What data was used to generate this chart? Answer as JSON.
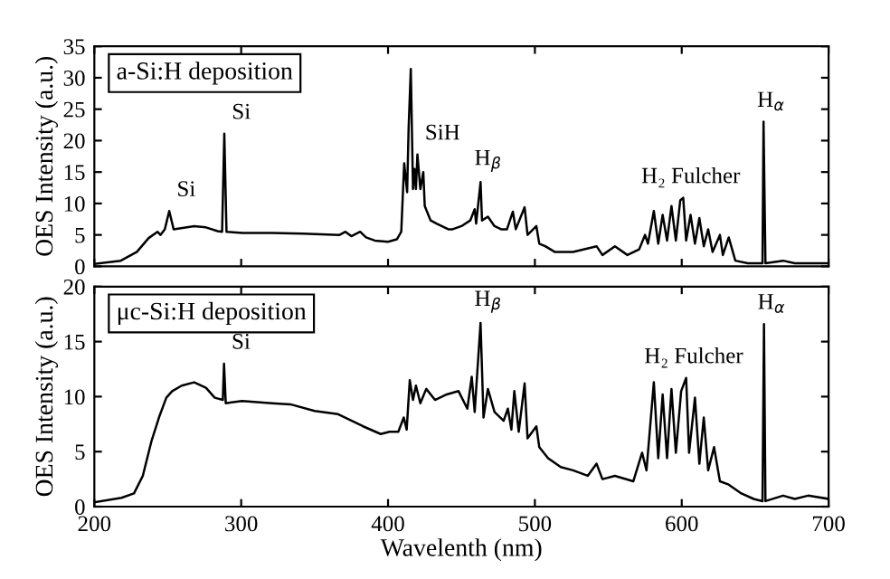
{
  "chart_data": [
    {
      "type": "line",
      "title": "a-Si:H deposition",
      "ylabel": "OES Intensity (a.u.)",
      "xlim": [
        200,
        700
      ],
      "xticks": [
        200,
        300,
        400,
        500,
        600,
        700
      ],
      "ylim": [
        0,
        35
      ],
      "yticks": [
        0,
        5,
        10,
        15,
        20,
        25,
        30,
        35
      ],
      "tick_labels": "y",
      "grid": false,
      "series": [
        {
          "color": "#000000",
          "x": [
            200,
            218,
            229,
            237,
            243,
            245,
            248,
            251,
            254,
            260,
            268,
            276,
            284,
            287,
            288.5,
            290,
            301,
            321,
            342,
            367,
            371,
            375,
            381,
            385,
            391,
            400,
            406,
            409,
            411,
            413,
            414,
            415.5,
            417,
            418,
            419,
            420,
            422,
            424,
            425,
            429,
            433,
            441,
            444,
            450,
            456,
            459,
            460,
            463,
            464,
            468,
            472.5,
            477,
            481,
            485,
            487,
            493,
            495,
            501,
            503,
            507,
            513.5,
            526,
            542,
            546,
            554.5,
            563,
            571,
            575,
            577,
            581,
            584,
            587,
            590,
            593,
            596,
            599,
            601,
            603,
            606,
            609,
            612,
            615,
            618,
            621,
            626,
            628,
            632,
            636.5,
            645,
            655,
            655.7,
            657,
            669,
            677,
            700
          ],
          "values": [
            0.4,
            0.9,
            2.3,
            4.5,
            5.5,
            5,
            5.9,
            8.8,
            5.9,
            6.1,
            6.4,
            6.2,
            5.6,
            5.5,
            21.1,
            5.5,
            5.3,
            5.3,
            5.2,
            5,
            5.5,
            4.8,
            5.5,
            4.6,
            4.1,
            3.9,
            4.3,
            5.5,
            16.4,
            11.8,
            21.9,
            31.4,
            12.3,
            15.5,
            12.3,
            17.8,
            12.3,
            15,
            9.6,
            7.3,
            6.8,
            5.9,
            5.9,
            6.4,
            7.3,
            9.1,
            6.8,
            13.4,
            7.3,
            7.9,
            6.4,
            5.9,
            5.9,
            8.7,
            5.9,
            9.4,
            5,
            6.4,
            3.6,
            3.2,
            2.3,
            2.3,
            3.2,
            1.8,
            3.2,
            1.8,
            2.7,
            5,
            3.6,
            8.8,
            3.6,
            8.2,
            4.1,
            9.6,
            4.1,
            10.5,
            10.9,
            4.1,
            8.2,
            3.6,
            7.7,
            3.2,
            5.9,
            2.3,
            5,
            1.8,
            4.6,
            0.9,
            0.5,
            0.5,
            23,
            0.5,
            0.9,
            0.5,
            0.5
          ]
        }
      ],
      "annotations": [
        {
          "text": "Si",
          "x": 251,
          "y": 8.8
        },
        {
          "text": "Si",
          "x": 288.5,
          "y": 21.1
        },
        {
          "text": "SiH",
          "x": 420,
          "y": 17.8
        },
        {
          "text": "H$_{β}$",
          "x": 463,
          "y": 13.4
        },
        {
          "text": "H₂ Fulcher",
          "x": 601,
          "y": 10.9
        },
        {
          "text": "H$_{α}$",
          "x": 655.7,
          "y": 23
        }
      ]
    },
    {
      "type": "line",
      "title": "μc-Si:H deposition",
      "xlabel": "Wavelenth (nm)",
      "ylabel": "OES Intensity (a.u.)",
      "xlim": [
        200,
        700
      ],
      "xticks": [
        200,
        300,
        400,
        500,
        600,
        700
      ],
      "ylim": [
        0,
        20
      ],
      "yticks": [
        0,
        5,
        10,
        15,
        20
      ],
      "grid": false,
      "series": [
        {
          "color": "#000000",
          "x": [
            200,
            218.5,
            227,
            233,
            239,
            244,
            249,
            253,
            259.5,
            268,
            276,
            282,
            287.5,
            288.3,
            289.5,
            300.6,
            321,
            333.5,
            350,
            366,
            383,
            395,
            401,
            407,
            410.7,
            412.7,
            414.8,
            417,
            419,
            422,
            426,
            432,
            440,
            448,
            454,
            457,
            459,
            463,
            465,
            468,
            472.5,
            478.7,
            481.6,
            484,
            486,
            489,
            493,
            495,
            501,
            503,
            509,
            517.6,
            526,
            536,
            542,
            546,
            554.5,
            567,
            573,
            576,
            581,
            584,
            587,
            590,
            593,
            596,
            599.6,
            603,
            605,
            609,
            612,
            615,
            618,
            622,
            626,
            632,
            640.6,
            649,
            655,
            656,
            657,
            669,
            677,
            686,
            700
          ],
          "values": [
            0.4,
            0.8,
            1.2,
            2.8,
            6,
            8.1,
            9.9,
            10.5,
            11,
            11.3,
            10.8,
            9.9,
            9.7,
            13,
            9.4,
            9.6,
            9.4,
            9.3,
            8.7,
            8.4,
            7.3,
            6.6,
            6.8,
            6.8,
            8.1,
            7,
            11.5,
            9.7,
            11,
            9.4,
            10.7,
            9.7,
            10.2,
            10.5,
            8.9,
            11.8,
            8.6,
            16.7,
            8.1,
            10.7,
            8.6,
            7.8,
            8.9,
            7,
            10.5,
            6.8,
            11.2,
            6.2,
            7.3,
            5.4,
            4.4,
            3.6,
            3.3,
            2.8,
            3.9,
            2.5,
            2.8,
            2.3,
            4.9,
            3.3,
            11.3,
            4.4,
            10.2,
            4.4,
            10.7,
            4.9,
            10.5,
            11.7,
            4.9,
            9.9,
            3.9,
            8.1,
            3.3,
            5.4,
            2.3,
            2,
            1.2,
            0.7,
            0.5,
            16.6,
            0.5,
            1,
            0.7,
            1,
            0.7
          ]
        }
      ],
      "annotations": [
        {
          "text": "Si",
          "x": 288.3,
          "y": 13
        },
        {
          "text": "H$_{β}$",
          "x": 463,
          "y": 16.7
        },
        {
          "text": "H₂ Fulcher",
          "x": 603,
          "y": 11.7
        },
        {
          "text": "H$_{α}$",
          "x": 656,
          "y": 16.6
        }
      ]
    }
  ]
}
